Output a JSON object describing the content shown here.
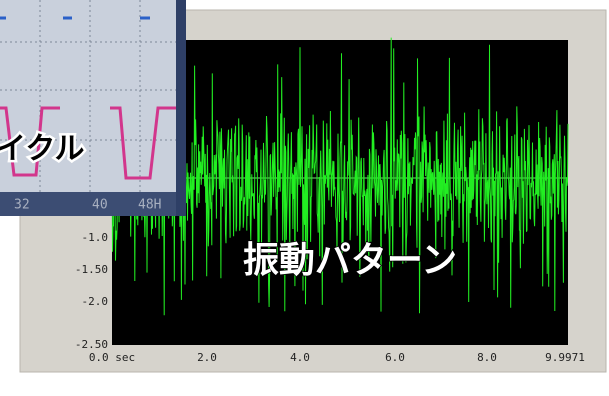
{
  "waveform_panel": {
    "y_labels": [
      "-1.0",
      "-1.50",
      "-2.0",
      "-2.50"
    ],
    "x_labels": [
      "0.0 sec",
      "2.0",
      "4.0",
      "6.0",
      "8.0",
      "9.9971"
    ],
    "caption": "振動パターン"
  },
  "scope_inset": {
    "caption": "イクル",
    "labels": [
      "32",
      "40",
      "48H"
    ]
  }
}
